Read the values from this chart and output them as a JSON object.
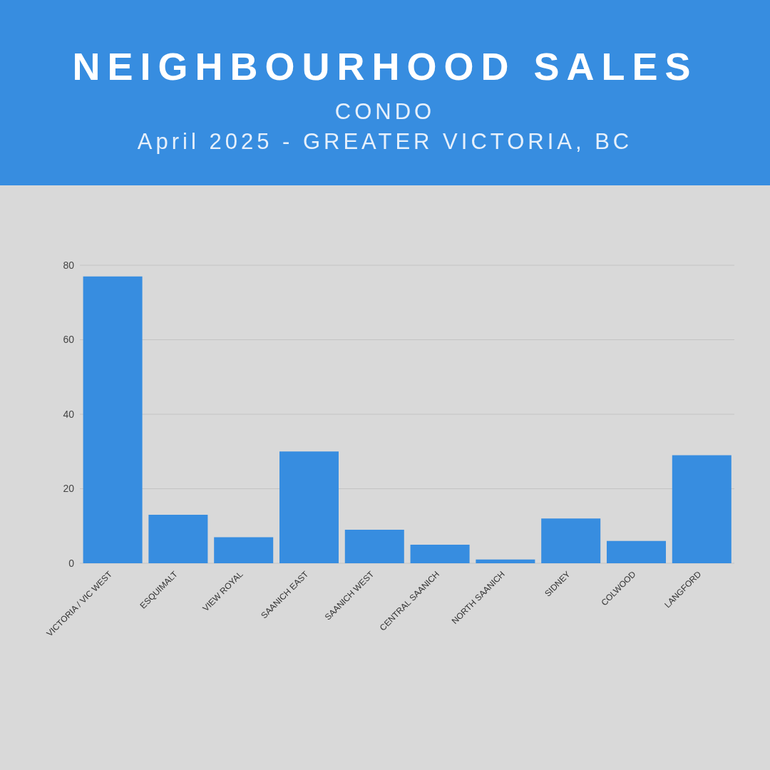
{
  "chart_data": {
    "type": "bar",
    "title": "NEIGHBOURHOOD SALES",
    "subtitle": "CONDO\nApril 2025 - GREATER VICTORIA, BC",
    "categories": [
      "VICTORIA / VIC WEST",
      "ESQUIMALT",
      "VIEW ROYAL",
      "SAANICH EAST",
      "SAANICH WEST",
      "CENTRAL SAANICH",
      "NORTH SAANICH",
      "SIDNEY",
      "COLWOOD",
      "LANGFORD"
    ],
    "values": [
      77,
      13,
      7,
      30,
      9,
      5,
      1,
      12,
      6,
      29
    ],
    "color": "#378de0",
    "ylim": [
      0,
      80
    ],
    "yticks": [
      0,
      20,
      40,
      60,
      80
    ],
    "grid": "y"
  }
}
